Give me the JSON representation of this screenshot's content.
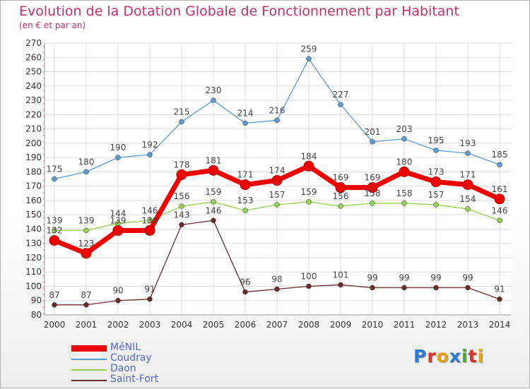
{
  "header": {
    "title": "Evolution de la Dotation Globale de Fonctionnement par Habitant",
    "subtitle": "(en € et par an)"
  },
  "logo": {
    "text": "Proxiti",
    "letter_colors": [
      "#2e7bd1",
      "#d9342b",
      "#e8a317",
      "#2e7bd1",
      "#4aa83a",
      "#d9342b",
      "#e8a317"
    ]
  },
  "chart_data": {
    "type": "line",
    "x": [
      "2000",
      "2001",
      "2002",
      "2003",
      "2004",
      "2005",
      "2006",
      "2007",
      "2008",
      "2009",
      "2010",
      "2011",
      "2012",
      "2013",
      "2014"
    ],
    "ylim": [
      80,
      270
    ],
    "yticks": [
      80,
      90,
      100,
      110,
      120,
      130,
      140,
      150,
      160,
      170,
      180,
      190,
      200,
      210,
      220,
      230,
      240,
      250,
      260,
      270
    ],
    "grid": true,
    "legend_position": "bottom-left",
    "series": [
      {
        "name": "MéNIL",
        "color": "#ee0000",
        "emphasis": true,
        "values": [
          132,
          123,
          139,
          139,
          178,
          181,
          171,
          174,
          184,
          169,
          169,
          180,
          173,
          171,
          161
        ]
      },
      {
        "name": "Coudray",
        "color": "#5b9bd5",
        "values": [
          175,
          180,
          190,
          192,
          215,
          230,
          214,
          216,
          259,
          227,
          201,
          203,
          195,
          193,
          185
        ]
      },
      {
        "name": "Daon",
        "color": "#92d050",
        "values": [
          139,
          139,
          144,
          146,
          156,
          159,
          153,
          157,
          159,
          156,
          158,
          158,
          157,
          154,
          146
        ]
      },
      {
        "name": "Saint-Fort",
        "color": "#6b2b2b",
        "values": [
          87,
          87,
          90,
          91,
          143,
          146,
          96,
          98,
          100,
          101,
          99,
          99,
          99,
          99,
          91
        ]
      }
    ]
  }
}
